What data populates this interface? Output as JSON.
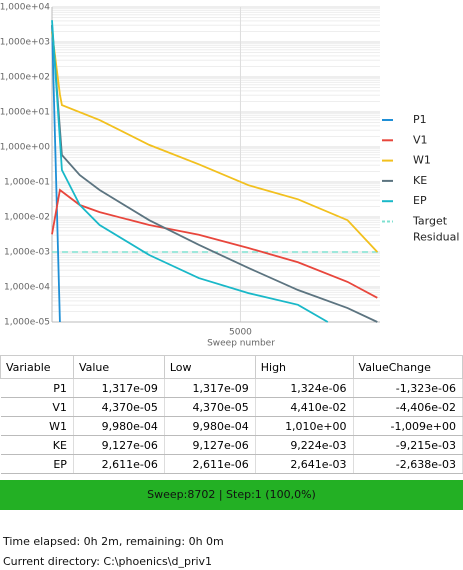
{
  "chart_data": {
    "type": "line",
    "xlabel": "Sweep number",
    "log_y": true,
    "grid": true,
    "xlim": [
      0,
      8702
    ],
    "xticks": [
      5000
    ],
    "ylim": [
      1e-05,
      10000
    ],
    "yticks": [
      {
        "value": 1e-05,
        "label": "1,000e-05"
      },
      {
        "value": 0.0001,
        "label": "1,000e-04"
      },
      {
        "value": 0.001,
        "label": "1,000e-03"
      },
      {
        "value": 0.01,
        "label": "1,000e-02"
      },
      {
        "value": 0.1,
        "label": "1,000e-01"
      },
      {
        "value": 1,
        "label": "1,000e+00"
      },
      {
        "value": 10,
        "label": "1,000e+01"
      },
      {
        "value": 100,
        "label": "1,000e+02"
      },
      {
        "value": 1000,
        "label": "1,000e+03"
      },
      {
        "value": 10000,
        "label": "1,000e+04"
      }
    ],
    "series": [
      {
        "name": "P1",
        "color": "#1f8fd6",
        "x": [
          0,
          210
        ],
        "values": [
          3000,
          1e-05
        ]
      },
      {
        "name": "V1",
        "color": "#e8463c",
        "x": [
          0,
          210,
          737,
          1263,
          2579,
          3895,
          5211,
          6526,
          7842,
          8631
        ],
        "values": [
          0.0032,
          0.059,
          0.022,
          0.0138,
          0.0059,
          0.0031,
          0.0013,
          0.00051,
          0.00014,
          4.9e-05
        ]
      },
      {
        "name": "W1",
        "color": "#f2c01e",
        "x": [
          0,
          210,
          263,
          1263,
          2579,
          3895,
          5211,
          6526,
          7842,
          8631
        ],
        "values": [
          2000,
          31.6,
          15.8,
          5.9,
          1.15,
          0.32,
          0.081,
          0.032,
          0.0081,
          0.001
        ]
      },
      {
        "name": "KE",
        "color": "#5c7480",
        "x": [
          0,
          263,
          737,
          1263,
          2579,
          3895,
          5211,
          6526,
          7842,
          8631
        ],
        "values": [
          3100,
          0.59,
          0.158,
          0.059,
          0.0081,
          0.0016,
          0.00035,
          8.2e-05,
          2.5e-05,
          1e-05
        ]
      },
      {
        "name": "EP",
        "color": "#19b8c8",
        "x": [
          0,
          263,
          737,
          1263,
          2579,
          3895,
          5211,
          6526,
          7316
        ],
        "values": [
          4200,
          0.22,
          0.022,
          0.0059,
          0.00082,
          0.00018,
          6.7e-05,
          3.1e-05,
          1e-05
        ]
      }
    ],
    "target": {
      "name": "Target Residual",
      "color": "#7fe0d0",
      "value": 0.001
    }
  },
  "table": {
    "columns": [
      "Variable",
      "Value",
      "Low",
      "High",
      "ValueChange"
    ],
    "rows": [
      [
        "P1",
        "1,317e-09",
        "1,317e-09",
        "1,324e-06",
        "-1,323e-06"
      ],
      [
        "V1",
        "4,370e-05",
        "4,370e-05",
        "4,410e-02",
        "-4,406e-02"
      ],
      [
        "W1",
        "9,980e-04",
        "9,980e-04",
        "1,010e+00",
        "-1,009e+00"
      ],
      [
        "KE",
        "9,127e-06",
        "9,127e-06",
        "9,224e-03",
        "-9,215e-03"
      ],
      [
        "EP",
        "2,611e-06",
        "2,611e-06",
        "2,641e-03",
        "-2,638e-03"
      ]
    ]
  },
  "status": "Sweep:8702 | Step:1  (100,0%)",
  "info": {
    "time": "Time elapsed: 0h 2m, remaining: 0h 0m",
    "directory": "Current directory:  C:\\phoenics\\d_priv1"
  }
}
